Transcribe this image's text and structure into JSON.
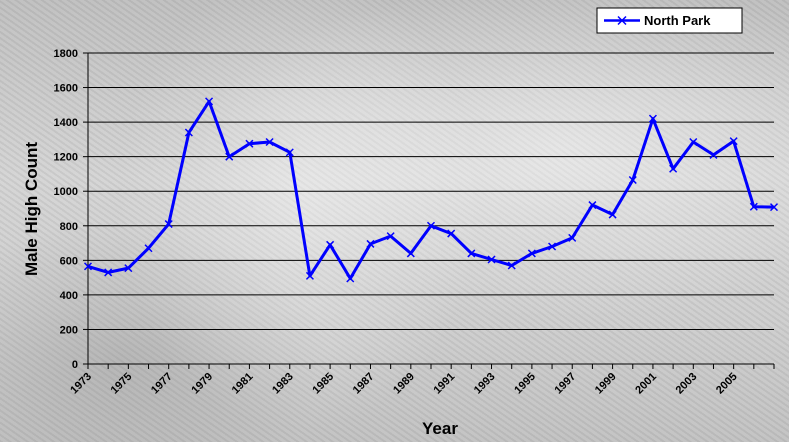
{
  "chart_data": {
    "type": "line",
    "title": "",
    "xlabel": "Year",
    "ylabel": "Male High Count",
    "ylim": [
      0,
      1800
    ],
    "yticks": [
      0,
      200,
      400,
      600,
      800,
      1000,
      1200,
      1400,
      1600,
      1800
    ],
    "xtick_labels": [
      "1973",
      "1975",
      "1977",
      "1979",
      "1981",
      "1983",
      "1985",
      "1987",
      "1989",
      "1991",
      "1993",
      "1995",
      "1997",
      "1999",
      "2001",
      "2003",
      "2005"
    ],
    "grid": "horizontal",
    "legend_position": "top-right",
    "series": [
      {
        "name": "North Park",
        "color": "#0000ff",
        "marker": "x",
        "x": [
          1973,
          1974,
          1975,
          1976,
          1977,
          1978,
          1979,
          1980,
          1981,
          1982,
          1983,
          1984,
          1985,
          1986,
          1987,
          1988,
          1989,
          1990,
          1991,
          1992,
          1993,
          1994,
          1995,
          1996,
          1997,
          1998,
          1999,
          2000,
          2001,
          2002,
          2003,
          2004,
          2005,
          2006,
          2007
        ],
        "values": [
          565,
          530,
          555,
          670,
          810,
          1340,
          1520,
          1200,
          1275,
          1285,
          1225,
          510,
          690,
          495,
          695,
          740,
          640,
          800,
          755,
          640,
          605,
          570,
          640,
          680,
          730,
          920,
          865,
          1065,
          1420,
          1130,
          1285,
          1210,
          1290,
          910,
          908
        ]
      }
    ]
  }
}
